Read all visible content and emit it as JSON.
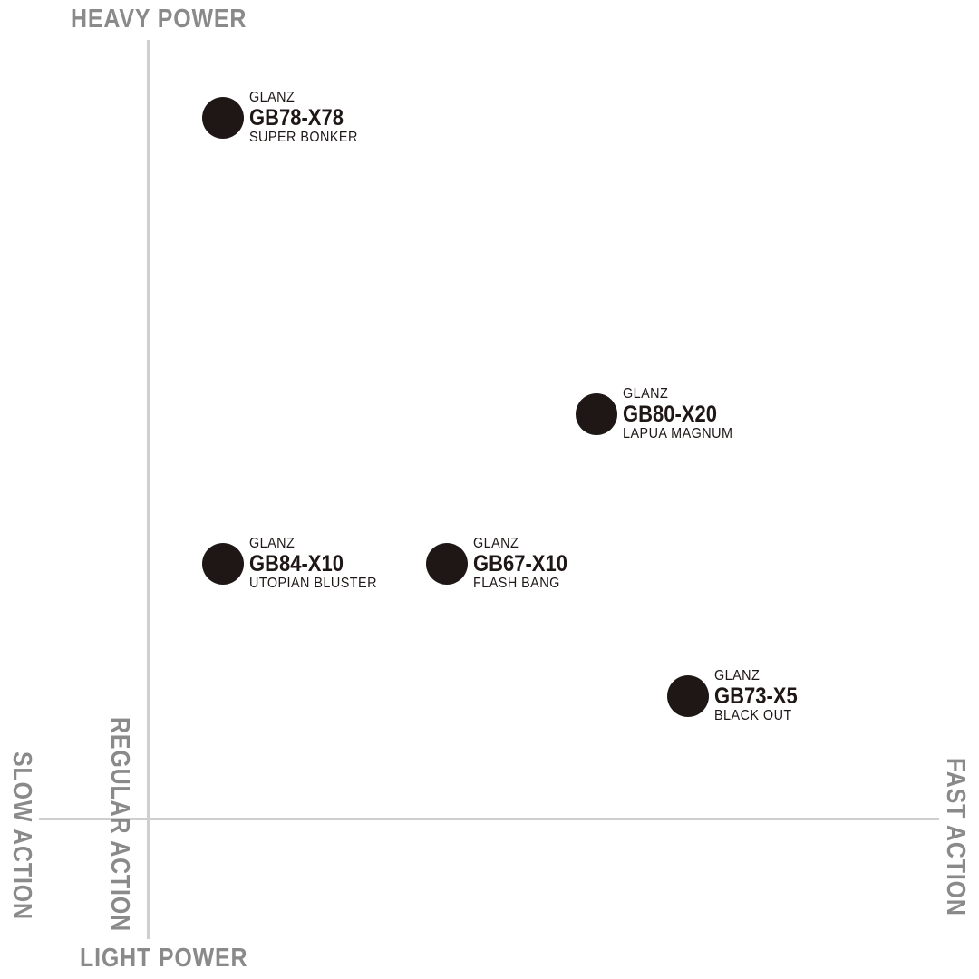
{
  "axes": {
    "top": "HEAVY POWER",
    "bottom": "LIGHT POWER",
    "left_outer": "SLOW ACTION",
    "left_inner": "REGULAR ACTION",
    "right": "FAST ACTION"
  },
  "colors": {
    "axis_line": "#cfcfcf",
    "axis_label": "#8a8a8a",
    "marker": "#1e1716"
  },
  "products": [
    {
      "brand": "GLANZ",
      "model": "GB78-X78",
      "name": "SUPER BONKER"
    },
    {
      "brand": "GLANZ",
      "model": "GB80-X20",
      "name": "LAPUA MAGNUM"
    },
    {
      "brand": "GLANZ",
      "model": "GB84-X10",
      "name": "UTOPIAN BLUSTER"
    },
    {
      "brand": "GLANZ",
      "model": "GB67-X10",
      "name": "FLASH BANG"
    },
    {
      "brand": "GLANZ",
      "model": "GB73-X5",
      "name": "BLACK OUT"
    }
  ]
}
